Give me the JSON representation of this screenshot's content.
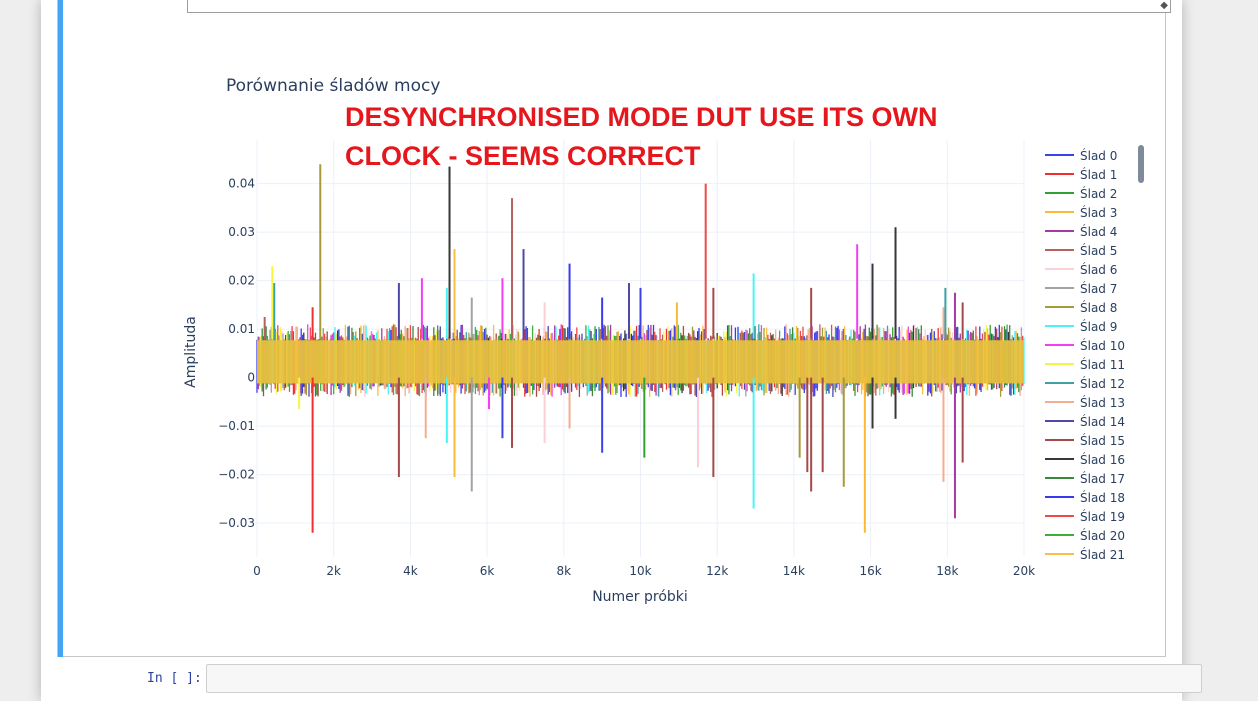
{
  "prompt": {
    "label": "In [ ]:"
  },
  "annotation": "DESYNCHRONISED MODE DUT USE ITS OWN CLOCK - SEEMS CORRECT",
  "chart_data": {
    "type": "line",
    "title": "Porównanie śladów mocy",
    "xlabel": "Numer próbki",
    "ylabel": "Amplituda",
    "xlim": [
      0,
      20000
    ],
    "ylim": [
      -0.037,
      0.049
    ],
    "x_ticks": [
      0,
      2000,
      4000,
      6000,
      8000,
      10000,
      12000,
      14000,
      16000,
      18000,
      20000
    ],
    "x_tick_labels": [
      "0",
      "2k",
      "4k",
      "6k",
      "8k",
      "10k",
      "12k",
      "14k",
      "16k",
      "18k",
      "20k"
    ],
    "y_ticks": [
      -0.03,
      -0.02,
      -0.01,
      0,
      0.01,
      0.02,
      0.03,
      0.04
    ],
    "y_tick_labels": [
      "−0.03",
      "−0.02",
      "−0.01",
      "0",
      "0.01",
      "0.02",
      "0.03",
      "0.04"
    ],
    "grid": true,
    "legend_placement": "right",
    "baseline_band": [
      -0.004,
      0.011
    ],
    "series": [
      {
        "name": "Ślad 0",
        "color": "#3b42e8"
      },
      {
        "name": "Ślad 1",
        "color": "#f03030"
      },
      {
        "name": "Ślad 2",
        "color": "#33a033"
      },
      {
        "name": "Ślad 3",
        "color": "#fbb93a"
      },
      {
        "name": "Ślad 4",
        "color": "#a53aa5"
      },
      {
        "name": "Ślad 5",
        "color": "#b5615f"
      },
      {
        "name": "Ślad 6",
        "color": "#fdcfd6"
      },
      {
        "name": "Ślad 7",
        "color": "#a3a3a3"
      },
      {
        "name": "Ślad 8",
        "color": "#a79a3a"
      },
      {
        "name": "Ślad 9",
        "color": "#48f4f4"
      },
      {
        "name": "Ślad 10",
        "color": "#f23ff2"
      },
      {
        "name": "Ślad 11",
        "color": "#f6f642"
      },
      {
        "name": "Ślad 12",
        "color": "#3fa1a6"
      },
      {
        "name": "Ślad 13",
        "color": "#f5ad8f"
      },
      {
        "name": "Ślad 14",
        "color": "#4f48a8"
      },
      {
        "name": "Ślad 15",
        "color": "#a54a4a"
      },
      {
        "name": "Ślad 16",
        "color": "#383838"
      },
      {
        "name": "Ślad 17",
        "color": "#3b8a3b"
      },
      {
        "name": "Ślad 18",
        "color": "#3939f0"
      },
      {
        "name": "Ślad 19",
        "color": "#f04848"
      },
      {
        "name": "Ślad 20",
        "color": "#3ab03a"
      },
      {
        "name": "Ślad 21",
        "color": "#fbbe44"
      }
    ],
    "spikes": [
      {
        "x": 200,
        "y": 0.0125,
        "series": 5
      },
      {
        "x": 400,
        "y": 0.023,
        "series": 11
      },
      {
        "x": 450,
        "y": 0.0195,
        "series": 12
      },
      {
        "x": 1100,
        "y": -0.0065,
        "series": 11
      },
      {
        "x": 1450,
        "y": 0.0145,
        "series": 1
      },
      {
        "x": 1450,
        "y": -0.032,
        "series": 1
      },
      {
        "x": 1650,
        "y": 0.044,
        "series": 8
      },
      {
        "x": 3700,
        "y": 0.0195,
        "series": 14
      },
      {
        "x": 3700,
        "y": -0.0205,
        "series": 15
      },
      {
        "x": 4300,
        "y": 0.0205,
        "series": 10
      },
      {
        "x": 4400,
        "y": -0.0125,
        "series": 13
      },
      {
        "x": 4950,
        "y": 0.0185,
        "series": 9
      },
      {
        "x": 4950,
        "y": -0.0135,
        "series": 9
      },
      {
        "x": 5020,
        "y": 0.0435,
        "series": 16
      },
      {
        "x": 5150,
        "y": 0.0265,
        "series": 21
      },
      {
        "x": 5150,
        "y": -0.0205,
        "series": 3
      },
      {
        "x": 5600,
        "y": 0.0165,
        "series": 7
      },
      {
        "x": 5600,
        "y": -0.0235,
        "series": 7
      },
      {
        "x": 6050,
        "y": -0.0065,
        "series": 10
      },
      {
        "x": 6400,
        "y": 0.0205,
        "series": 10
      },
      {
        "x": 6400,
        "y": -0.0125,
        "series": 0
      },
      {
        "x": 6650,
        "y": 0.037,
        "series": 5
      },
      {
        "x": 6650,
        "y": -0.0145,
        "series": 15
      },
      {
        "x": 6950,
        "y": 0.0265,
        "series": 14
      },
      {
        "x": 7500,
        "y": 0.0155,
        "series": 6
      },
      {
        "x": 7500,
        "y": -0.0135,
        "series": 6
      },
      {
        "x": 8150,
        "y": 0.0235,
        "series": 18
      },
      {
        "x": 8150,
        "y": -0.0105,
        "series": 13
      },
      {
        "x": 9000,
        "y": 0.0165,
        "series": 18
      },
      {
        "x": 9000,
        "y": -0.0155,
        "series": 0
      },
      {
        "x": 9700,
        "y": 0.0195,
        "series": 14
      },
      {
        "x": 10000,
        "y": 0.0185,
        "series": 0
      },
      {
        "x": 10100,
        "y": -0.0165,
        "series": 2
      },
      {
        "x": 10950,
        "y": 0.0155,
        "series": 3
      },
      {
        "x": 11500,
        "y": -0.0185,
        "series": 6
      },
      {
        "x": 11700,
        "y": 0.04,
        "series": 19
      },
      {
        "x": 11900,
        "y": 0.0185,
        "series": 15
      },
      {
        "x": 11900,
        "y": -0.0205,
        "series": 15
      },
      {
        "x": 12950,
        "y": 0.0215,
        "series": 9
      },
      {
        "x": 12950,
        "y": -0.027,
        "series": 9
      },
      {
        "x": 14150,
        "y": -0.0165,
        "series": 8
      },
      {
        "x": 14350,
        "y": -0.0195,
        "series": 15
      },
      {
        "x": 14450,
        "y": 0.0185,
        "series": 15
      },
      {
        "x": 14450,
        "y": -0.0235,
        "series": 15
      },
      {
        "x": 14750,
        "y": -0.0195,
        "series": 15
      },
      {
        "x": 15300,
        "y": -0.0225,
        "series": 8
      },
      {
        "x": 15650,
        "y": 0.0275,
        "series": 10
      },
      {
        "x": 15850,
        "y": -0.032,
        "series": 3
      },
      {
        "x": 16050,
        "y": 0.0235,
        "series": 16
      },
      {
        "x": 16050,
        "y": -0.0105,
        "series": 16
      },
      {
        "x": 16650,
        "y": 0.031,
        "series": 16
      },
      {
        "x": 16650,
        "y": -0.0085,
        "series": 16
      },
      {
        "x": 17900,
        "y": 0.0145,
        "series": 13
      },
      {
        "x": 17900,
        "y": -0.0215,
        "series": 13
      },
      {
        "x": 17950,
        "y": 0.0185,
        "series": 12
      },
      {
        "x": 18200,
        "y": 0.0175,
        "series": 4
      },
      {
        "x": 18200,
        "y": -0.029,
        "series": 4
      },
      {
        "x": 18400,
        "y": 0.0155,
        "series": 15
      },
      {
        "x": 18400,
        "y": -0.0175,
        "series": 15
      }
    ]
  }
}
